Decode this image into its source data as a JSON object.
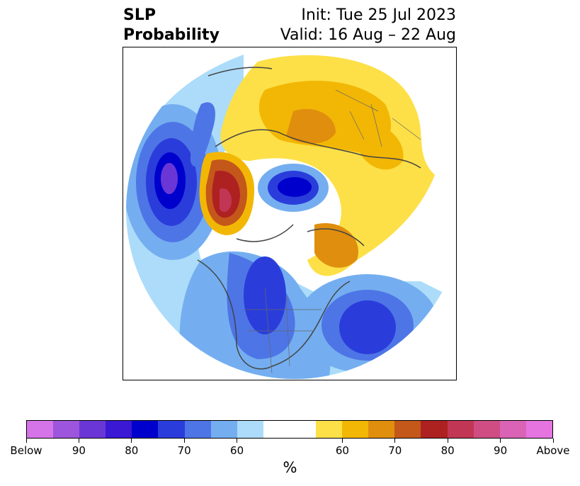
{
  "header": {
    "title_line1": "SLP",
    "title_line2": "Probability",
    "init": "Init: Tue 25 Jul 2023",
    "valid": "Valid: 16 Aug – 22 Aug"
  },
  "map": {
    "projection": "polar stereographic (North Pole)",
    "variable": "SLP probability (%)"
  },
  "colorbar": {
    "unit": "%",
    "colors": [
      "#d574e8",
      "#9d55de",
      "#6a37d6",
      "#3a18d4",
      "#0000cc",
      "#2a3ddb",
      "#4e75e6",
      "#74aef0",
      "#acdcfa",
      "#ffffff",
      "#ffffff",
      "#fde047",
      "#f2b705",
      "#e08e0e",
      "#c4571a",
      "#ae2121",
      "#c23655",
      "#cf4d83",
      "#da63b5",
      "#e574e1"
    ],
    "tick_labels": [
      "Below",
      "90",
      "80",
      "70",
      "60",
      "60",
      "70",
      "80",
      "90",
      "Above"
    ]
  }
}
